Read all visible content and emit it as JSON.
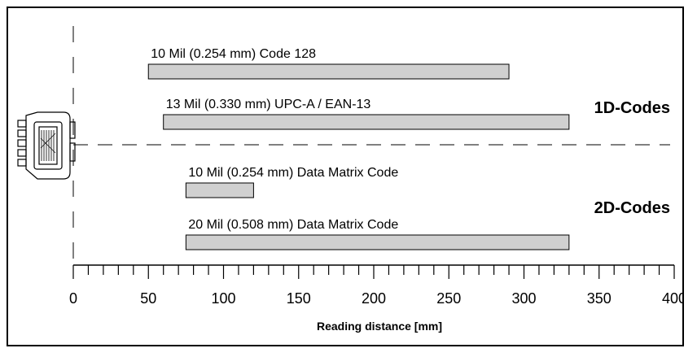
{
  "chart_data": {
    "type": "bar",
    "orientation": "horizontal",
    "xlabel": "Reading distance [mm]",
    "ylabel": "",
    "xlim": [
      0,
      400
    ],
    "x_major_ticks": [
      0,
      50,
      100,
      150,
      200,
      250,
      300,
      350,
      400
    ],
    "x_tick_labels": [
      "0",
      "50",
      "100",
      "150",
      "200",
      "250",
      "300",
      "350",
      "400"
    ],
    "x_minor_step": 10,
    "grid": false,
    "legend": "none",
    "groups": [
      {
        "name": "1D-Codes"
      },
      {
        "name": "2D-Codes"
      }
    ],
    "bars": [
      {
        "label": "10 Mil (0.254 mm) Code 128",
        "group": "1D-Codes",
        "start": 50,
        "end": 290
      },
      {
        "label": "13 Mil (0.330 mm) UPC-A / EAN-13",
        "group": "1D-Codes",
        "start": 60,
        "end": 330
      },
      {
        "label": "10 Mil (0.254 mm) Data Matrix Code",
        "group": "2D-Codes",
        "start": 75,
        "end": 120
      },
      {
        "label": "20 Mil (0.508 mm) Data Matrix Code",
        "group": "2D-Codes",
        "start": 75,
        "end": 330
      }
    ],
    "colors": {
      "bar_fill": "#d0d0d0",
      "stroke": "#000000"
    }
  },
  "icons": {
    "scanner": "barcode-scanner-icon"
  }
}
